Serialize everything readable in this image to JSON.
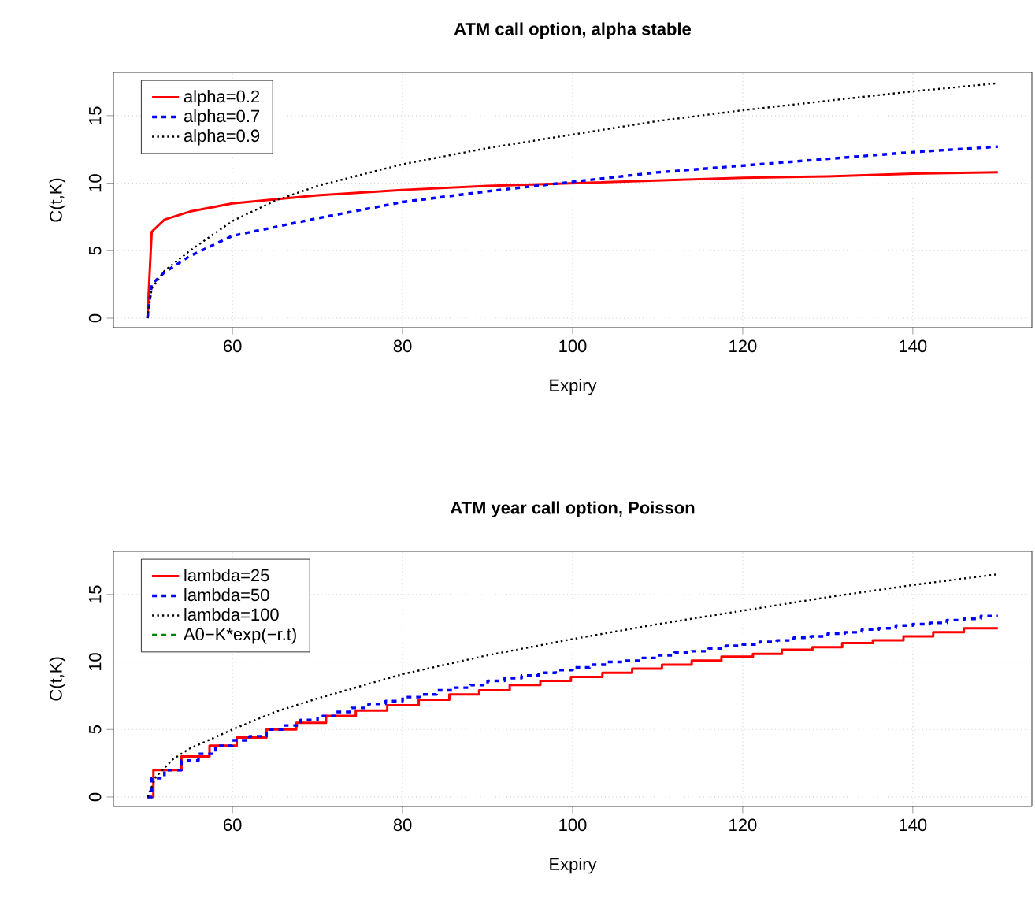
{
  "chart_data": [
    {
      "type": "line",
      "title": "ATM call option, alpha stable",
      "xlabel": "Expiry",
      "ylabel": "C(t,K)",
      "xlim": [
        46,
        154
      ],
      "ylim": [
        -0.7,
        18.2
      ],
      "xticks": [
        60,
        80,
        100,
        120,
        140
      ],
      "yticks": [
        0,
        5,
        10,
        15
      ],
      "grid": true,
      "legend": "top left",
      "series": [
        {
          "name": "alpha=0.2",
          "color": "#ff0000",
          "line_style": "solid",
          "x": [
            50,
            50.5,
            52,
            55,
            60,
            70,
            80,
            90,
            100,
            110,
            120,
            130,
            140,
            150
          ],
          "values": [
            0,
            6.4,
            7.3,
            7.9,
            8.5,
            9.1,
            9.5,
            9.8,
            10.0,
            10.2,
            10.4,
            10.5,
            10.7,
            10.8
          ]
        },
        {
          "name": "alpha=0.7",
          "color": "#0000ff",
          "line_style": "dashed",
          "x": [
            50,
            50.5,
            52,
            55,
            60,
            70,
            80,
            90,
            100,
            110,
            120,
            130,
            140,
            150
          ],
          "values": [
            0,
            2.5,
            3.4,
            4.6,
            6.1,
            7.4,
            8.6,
            9.4,
            10.1,
            10.8,
            11.3,
            11.8,
            12.3,
            12.7
          ]
        },
        {
          "name": "alpha=0.9",
          "color": "#000000",
          "line_style": "dotted",
          "x": [
            50,
            50.5,
            52,
            55,
            60,
            65,
            70,
            80,
            90,
            100,
            110,
            120,
            130,
            140,
            150
          ],
          "values": [
            0,
            2.2,
            3.5,
            5.0,
            7.2,
            8.7,
            9.8,
            11.4,
            12.6,
            13.6,
            14.6,
            15.4,
            16.1,
            16.8,
            17.4
          ]
        }
      ]
    },
    {
      "type": "line",
      "title": "ATM year call option, Poisson",
      "xlabel": "Expiry",
      "ylabel": "C(t,K)",
      "xlim": [
        46,
        154
      ],
      "ylim": [
        -0.7,
        18.2
      ],
      "xticks": [
        60,
        80,
        100,
        120,
        140
      ],
      "yticks": [
        0,
        5,
        10,
        15
      ],
      "grid": true,
      "legend": "top left",
      "series": [
        {
          "name": "lambda=25",
          "type": "step",
          "color": "#ff0000",
          "line_style": "solid",
          "x": [
            50,
            50.7,
            54,
            57.3,
            60.5,
            64,
            67.5,
            71,
            74.5,
            78.2,
            81.9,
            85.5,
            89,
            92.6,
            96.2,
            99.8,
            103.5,
            107,
            110.5,
            114,
            117.5,
            121.2,
            124.6,
            128.2,
            131.7,
            135.3,
            138.9,
            142.4,
            146,
            150
          ],
          "values": [
            0,
            2.0,
            3.0,
            3.8,
            4.4,
            5.0,
            5.5,
            6.0,
            6.4,
            6.8,
            7.2,
            7.6,
            7.9,
            8.3,
            8.6,
            8.9,
            9.2,
            9.5,
            9.8,
            10.1,
            10.4,
            10.6,
            10.9,
            11.1,
            11.4,
            11.6,
            11.9,
            12.2,
            12.5,
            12.5
          ]
        },
        {
          "name": "lambda=50",
          "type": "step",
          "color": "#0000ff",
          "line_style": "dashed",
          "x": [
            50,
            50.5,
            52,
            54,
            56,
            58,
            60,
            62,
            64,
            66,
            68,
            70,
            72,
            74,
            76,
            78,
            80,
            82,
            84,
            86,
            88,
            90,
            92,
            94,
            96,
            98,
            100,
            102,
            104,
            106,
            108,
            110,
            112,
            114,
            116,
            118,
            120,
            122,
            124,
            126,
            128,
            130,
            132,
            134,
            136,
            138,
            140,
            142,
            144,
            146,
            148,
            150
          ],
          "values": [
            0,
            1.4,
            2.0,
            2.7,
            3.2,
            3.8,
            4.2,
            4.5,
            5.0,
            5.3,
            5.7,
            6.0,
            6.3,
            6.6,
            6.9,
            7.1,
            7.4,
            7.6,
            7.9,
            8.1,
            8.3,
            8.6,
            8.8,
            9.0,
            9.2,
            9.4,
            9.6,
            9.8,
            10.0,
            10.1,
            10.3,
            10.5,
            10.7,
            10.8,
            11.0,
            11.2,
            11.3,
            11.5,
            11.6,
            11.8,
            11.9,
            12.1,
            12.2,
            12.4,
            12.5,
            12.7,
            12.8,
            12.9,
            13.1,
            13.2,
            13.4,
            13.4
          ]
        },
        {
          "name": "lambda=100",
          "color": "#000000",
          "line_style": "dotted",
          "x": [
            50,
            51,
            53,
            55,
            60,
            65,
            70,
            80,
            90,
            100,
            110,
            120,
            130,
            140,
            150
          ],
          "values": [
            0,
            1.5,
            2.8,
            3.6,
            5.0,
            6.3,
            7.3,
            9.1,
            10.5,
            11.7,
            12.8,
            13.8,
            14.8,
            15.7,
            16.5
          ]
        },
        {
          "name": "A0−K*exp(−r.t)",
          "color": "#008000",
          "line_style": "dashed"
        }
      ]
    }
  ]
}
